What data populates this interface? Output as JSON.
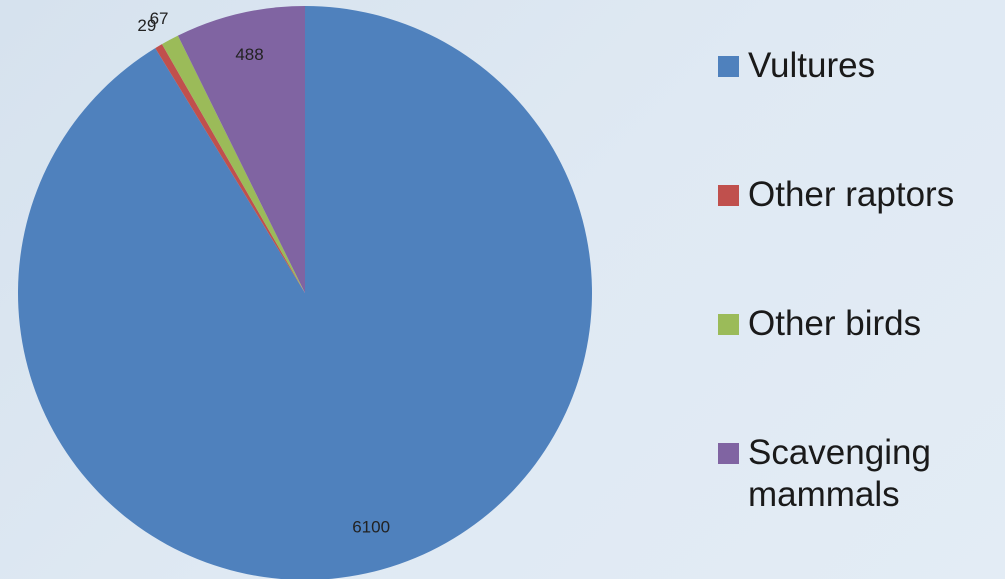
{
  "chart_data": {
    "type": "pie",
    "categories": [
      "Vultures",
      "Other raptors",
      "Other birds",
      "Scavenging mammals"
    ],
    "values": [
      6100,
      29,
      67,
      488
    ],
    "colors": [
      "#4f81bd",
      "#c0504d",
      "#9bbb59",
      "#8064a2"
    ],
    "legend": "right"
  }
}
